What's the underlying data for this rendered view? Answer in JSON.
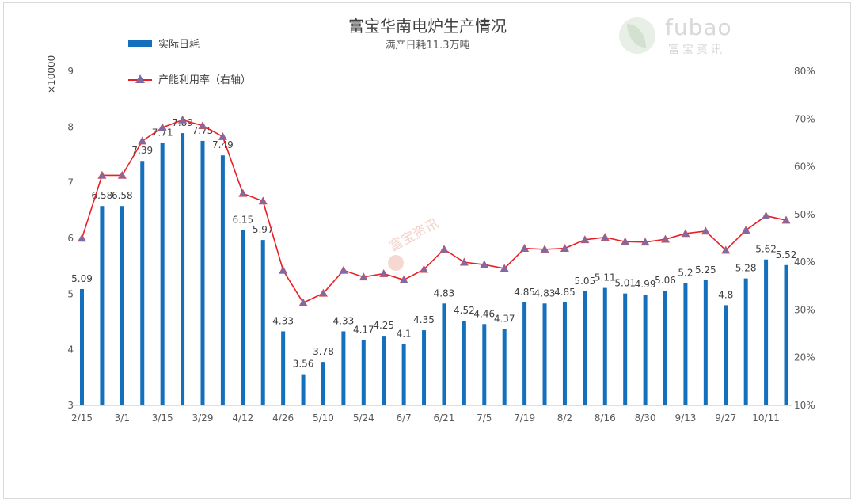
{
  "title": "富宝华南电炉生产情况",
  "subtitle": "满产日耗11.3万吨",
  "logo": {
    "en": "fubao",
    "cn": "富宝资讯"
  },
  "watermark": "富宝资讯",
  "legend": {
    "bar": "实际日耗",
    "line": "产能利用率（右轴）"
  },
  "colors": {
    "bar": "#1470bc",
    "line": "#e81f25",
    "marker": "#7d6aa7",
    "axis_text": "#595959"
  },
  "chart_data": {
    "type": "bar",
    "y_unit_label": "×10000",
    "ylim": [
      3,
      9
    ],
    "y_ticks": [
      3,
      4,
      5,
      6,
      7,
      8,
      9
    ],
    "y2lim": [
      10,
      80
    ],
    "y2_ticks": [
      "10%",
      "20%",
      "30%",
      "40%",
      "50%",
      "60%",
      "70%",
      "80%"
    ],
    "x_tick_labels": [
      "2/15",
      "3/1",
      "3/15",
      "3/29",
      "4/12",
      "4/26",
      "5/10",
      "5/24",
      "6/7",
      "6/21",
      "7/5",
      "7/19",
      "8/2",
      "8/16",
      "8/30",
      "9/13",
      "9/27",
      "10/11"
    ],
    "legend_position": "top-left",
    "grid": false,
    "series": [
      {
        "name": "实际日耗",
        "type": "bar",
        "values": [
          5.09,
          6.58,
          6.58,
          7.39,
          7.71,
          7.89,
          7.75,
          7.49,
          6.15,
          5.97,
          4.33,
          3.56,
          3.78,
          4.33,
          4.17,
          4.25,
          4.1,
          4.35,
          4.83,
          4.52,
          4.46,
          4.37,
          4.85,
          4.83,
          4.85,
          5.05,
          5.11,
          5.01,
          4.99,
          5.06,
          5.2,
          5.25,
          4.8,
          5.28,
          5.62,
          5.52
        ],
        "labels": [
          "5.09",
          "6.58",
          "6.58",
          "7.39",
          "7.71",
          "7.89",
          "7.75",
          "7.49",
          "6.15",
          "5.97",
          "4.33",
          "3.56",
          "3.78",
          "4.33",
          "4.17",
          "4.25",
          "4.1",
          "4.35",
          "4.83",
          "4.52",
          "4.46",
          "4.37",
          "4.85",
          "4.83",
          "4.85",
          "5.05",
          "5.11",
          "5.01",
          "4.99",
          "5.06",
          "5.2",
          "5.25",
          "4.8",
          "5.28",
          "5.62",
          "5.52"
        ]
      },
      {
        "name": "产能利用率（右轴）",
        "type": "line",
        "axis": "right",
        "values": [
          45,
          58.2,
          58.2,
          65.4,
          68.2,
          69.8,
          68.6,
          66.3,
          54.4,
          52.8,
          38.3,
          31.5,
          33.5,
          38.3,
          36.9,
          37.6,
          36.3,
          38.5,
          42.7,
          40,
          39.5,
          38.7,
          42.9,
          42.7,
          42.9,
          44.7,
          45.2,
          44.3,
          44.2,
          44.8,
          46,
          46.5,
          42.5,
          46.7,
          49.7,
          48.8
        ]
      }
    ]
  }
}
